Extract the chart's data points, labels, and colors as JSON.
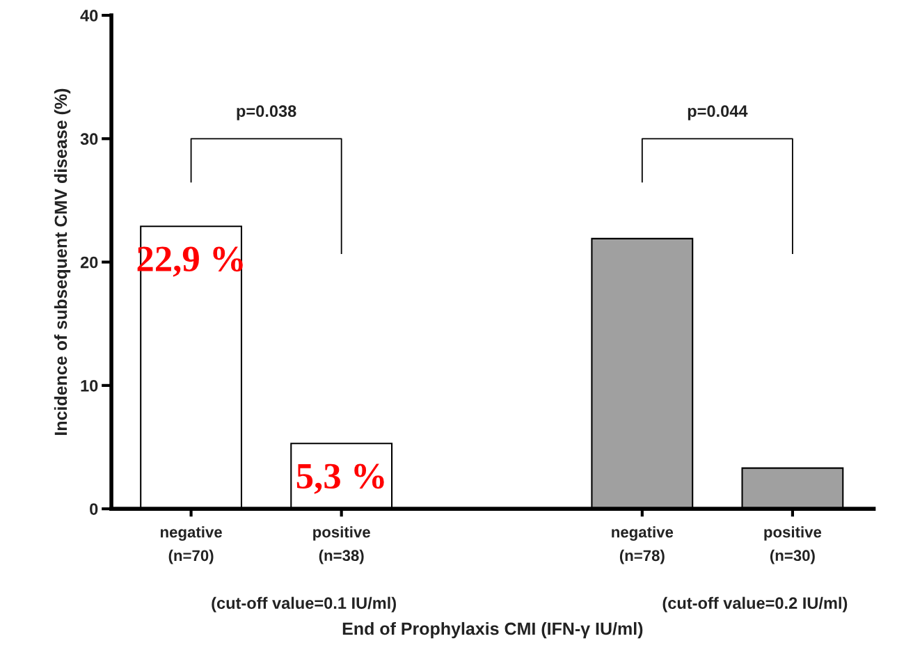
{
  "chart_data": {
    "type": "bar",
    "categories": [
      "negative\n(n=70)",
      "positive\n(n=38)",
      null,
      "negative\n(n=78)",
      "positive\n(n=30)"
    ],
    "values": [
      22.9,
      5.3,
      null,
      21.9,
      3.3
    ],
    "colors": [
      "#ffffff",
      "#ffffff",
      null,
      "#a0a0a0",
      "#a0a0a0"
    ],
    "value_labels": [
      "22,9 %",
      "5,3 %",
      null,
      null,
      null
    ],
    "xlabel": "End of Prophylaxis CMI (IFN-γ IU/ml)",
    "ylabel": "Incidence of subsequent CMV disease (%)",
    "ylim": [
      0,
      40
    ],
    "yticks": [
      0,
      10,
      20,
      30,
      40
    ],
    "annotations": [
      "p=0.038",
      "p=0.044",
      "(cut-off value=0.1 IU/ml)",
      "(cut-off value=0.2 IU/ml)"
    ],
    "grid": false,
    "legend": false
  }
}
